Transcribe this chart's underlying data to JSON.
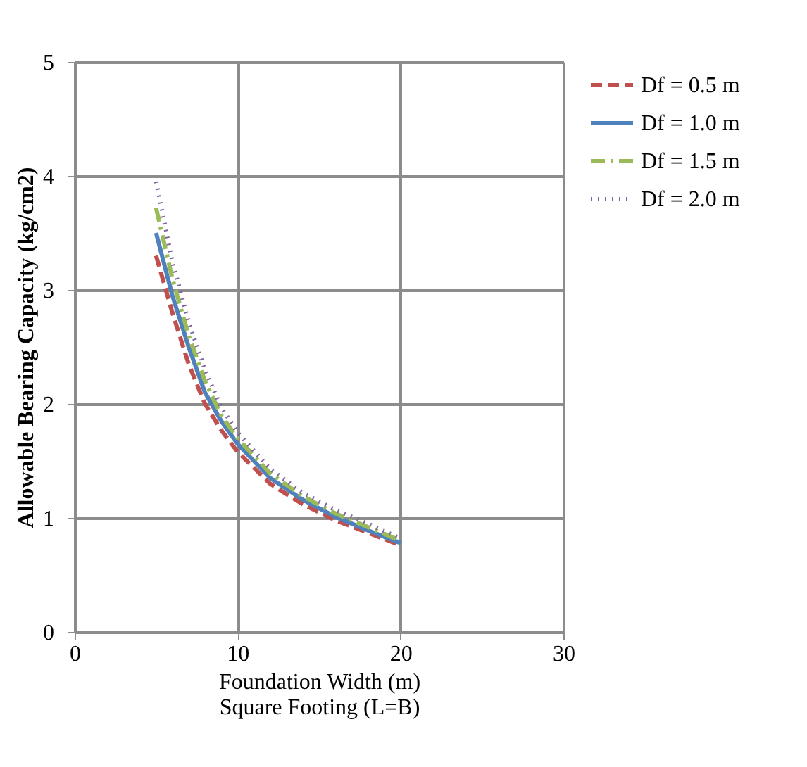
{
  "chart_data": {
    "type": "line",
    "xlabel": "Foundation Width (m)\nSquare Footing (L=B)",
    "ylabel": "Allowable Bearing Capacity  (kg/cm2)",
    "x": [
      5,
      6,
      7,
      8,
      9,
      10,
      12,
      14,
      16,
      18,
      20
    ],
    "series": [
      {
        "name": "Df = 0.5 m",
        "color": "#c0504d",
        "line_style": "dashed",
        "values": [
          3.3,
          2.8,
          2.35,
          2.0,
          1.77,
          1.58,
          1.3,
          1.12,
          0.98,
          0.87,
          0.76
        ]
      },
      {
        "name": "Df = 1.0 m",
        "color": "#4f81bd",
        "line_style": "solid",
        "values": [
          3.5,
          2.95,
          2.5,
          2.1,
          1.85,
          1.65,
          1.35,
          1.16,
          1.01,
          0.89,
          0.78
        ]
      },
      {
        "name": "Df = 1.5 m",
        "color": "#9bbb59",
        "line_style": "dashdot",
        "values": [
          3.72,
          3.1,
          2.6,
          2.2,
          1.9,
          1.7,
          1.39,
          1.19,
          1.04,
          0.92,
          0.8
        ]
      },
      {
        "name": "Df = 2.0 m",
        "color": "#8064a2",
        "line_style": "dotted",
        "values": [
          3.95,
          3.25,
          2.72,
          2.3,
          1.97,
          1.75,
          1.43,
          1.22,
          1.07,
          0.95,
          0.82
        ]
      }
    ],
    "xlim": [
      0,
      30
    ],
    "xticks": [
      0,
      10,
      20,
      30
    ],
    "ylim": [
      0,
      5
    ],
    "yticks": [
      0,
      1,
      2,
      3,
      4,
      5
    ],
    "grid": true,
    "legend": "right",
    "marker": "none"
  }
}
